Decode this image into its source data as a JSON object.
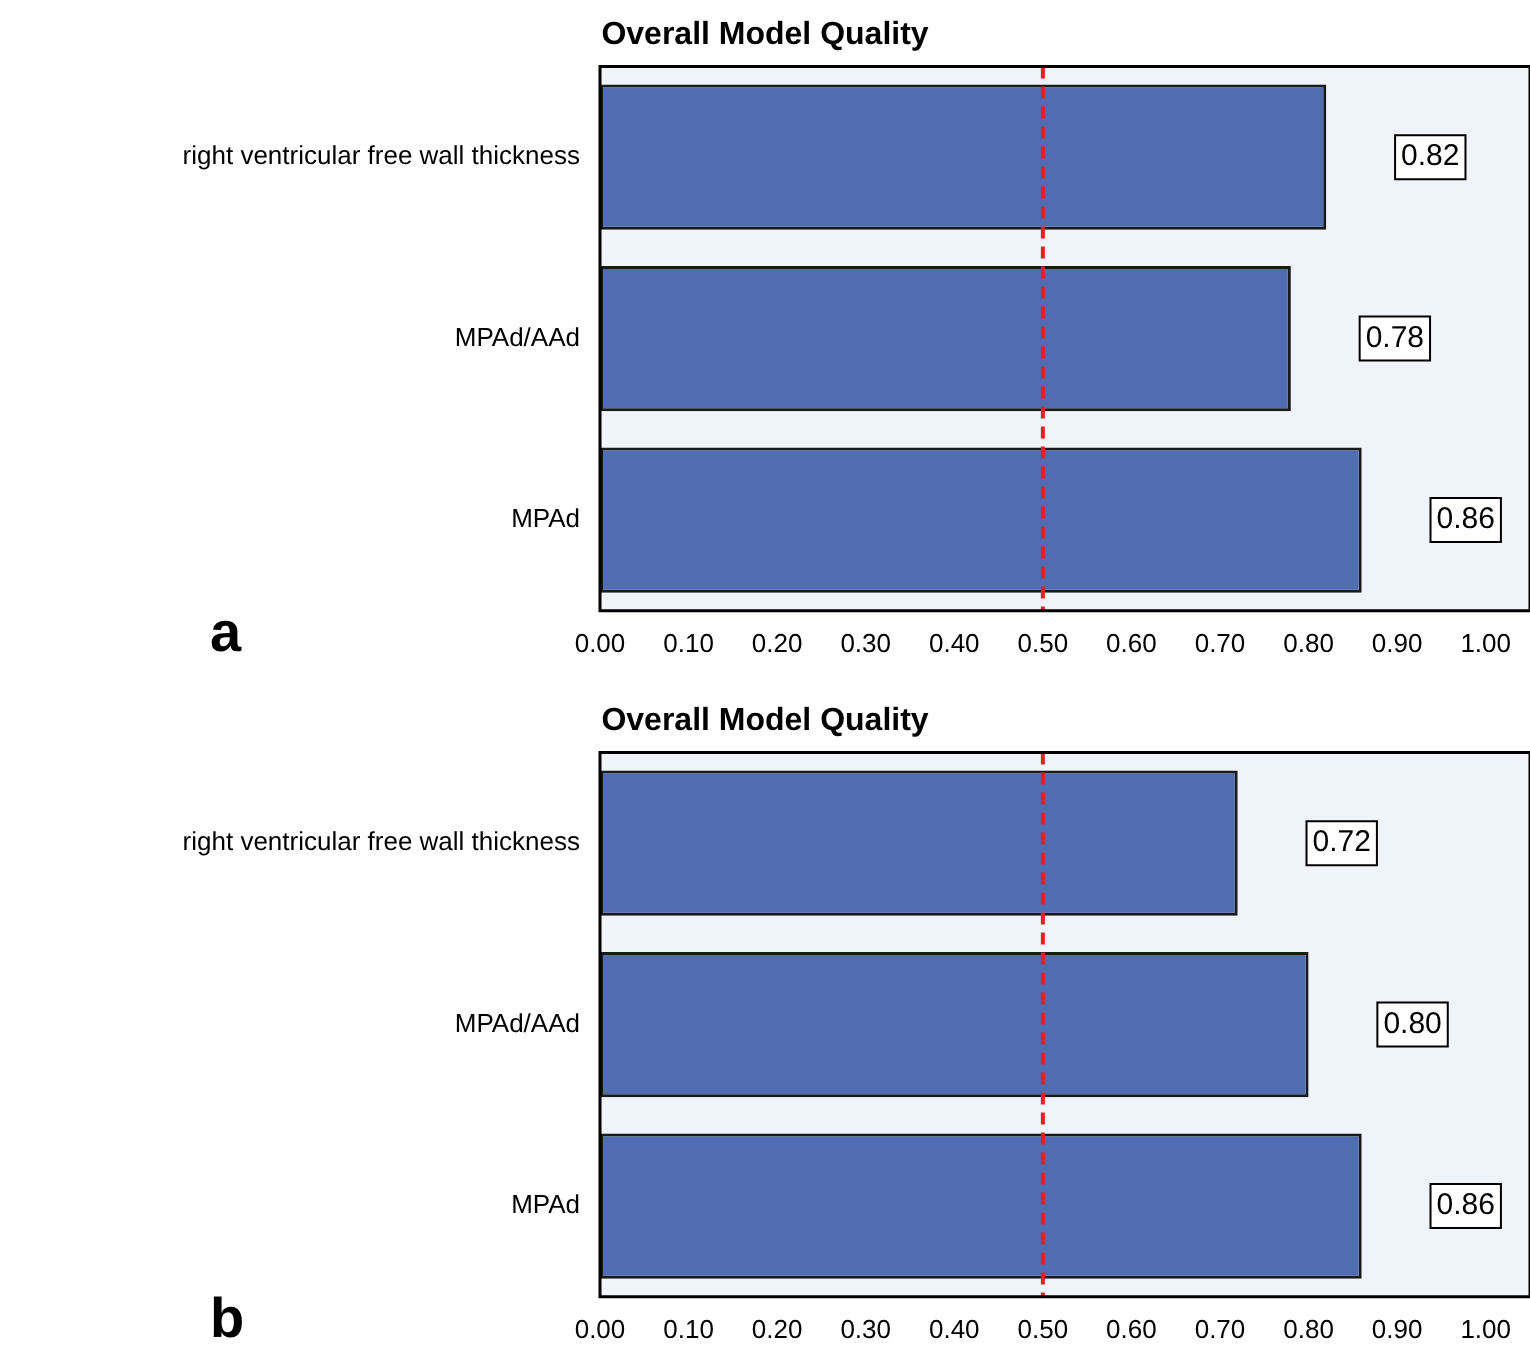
{
  "chart_data": [
    {
      "type": "bar",
      "orientation": "horizontal",
      "title": "Overall Model Quality",
      "categories": [
        "right ventricular free wall thickness",
        "MPAd/AAd",
        "MPAd"
      ],
      "values": [
        0.82,
        0.78,
        0.86
      ],
      "value_labels": [
        "0.82",
        "0.78",
        "0.86"
      ],
      "color": "#4f6db0",
      "xlim": [
        0,
        1.05
      ],
      "xticks": [
        {
          "value": 0,
          "label": "0.00"
        },
        {
          "value": 0.1,
          "label": "0.10"
        },
        {
          "value": 0.2,
          "label": "0.20"
        },
        {
          "value": 0.3,
          "label": "0.30"
        },
        {
          "value": 0.4,
          "label": "0.40"
        },
        {
          "value": 0.5,
          "label": "0.50"
        },
        {
          "value": 0.6,
          "label": "0.60"
        },
        {
          "value": 0.7,
          "label": "0.70"
        },
        {
          "value": 0.8,
          "label": "0.80"
        },
        {
          "value": 0.9,
          "label": "0.90"
        },
        {
          "value": 1,
          "label": "1.00"
        }
      ],
      "ref_lines": [
        {
          "axis": "x",
          "value": 0.5,
          "color": "#e8201c",
          "line_style": "dashed"
        }
      ],
      "annotations": [
        "a"
      ]
    },
    {
      "type": "bar",
      "orientation": "horizontal",
      "title": "Overall Model Quality",
      "categories": [
        "right ventricular free wall thickness",
        "MPAd/AAd",
        "MPAd"
      ],
      "values": [
        0.72,
        0.8,
        0.86
      ],
      "value_labels": [
        "0.72",
        "0.80",
        "0.86"
      ],
      "color": "#4f6db0",
      "xlim": [
        0,
        1.05
      ],
      "xticks": [
        {
          "value": 0,
          "label": "0.00"
        },
        {
          "value": 0.1,
          "label": "0.10"
        },
        {
          "value": 0.2,
          "label": "0.20"
        },
        {
          "value": 0.3,
          "label": "0.30"
        },
        {
          "value": 0.4,
          "label": "0.40"
        },
        {
          "value": 0.5,
          "label": "0.50"
        },
        {
          "value": 0.6,
          "label": "0.60"
        },
        {
          "value": 0.7,
          "label": "0.70"
        },
        {
          "value": 0.8,
          "label": "0.80"
        },
        {
          "value": 0.9,
          "label": "0.90"
        },
        {
          "value": 1,
          "label": "1.00"
        }
      ],
      "ref_lines": [
        {
          "axis": "x",
          "value": 0.5,
          "color": "#e8201c",
          "line_style": "dashed"
        }
      ],
      "annotations": [
        "b"
      ]
    }
  ]
}
